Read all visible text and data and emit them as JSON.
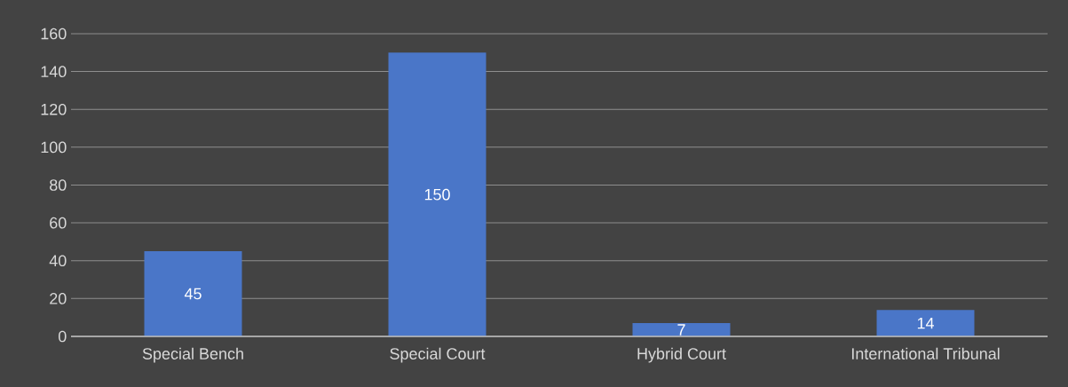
{
  "chart_data": {
    "type": "bar",
    "categories": [
      "Special Bench",
      "Special Court",
      "Hybrid Court",
      "International Tribunal"
    ],
    "values": [
      45,
      150,
      7,
      14
    ],
    "color": "#4a76c8",
    "ylim": [
      0,
      160
    ],
    "yticks": [
      0,
      20,
      40,
      60,
      80,
      100,
      120,
      140,
      160
    ],
    "grid": "y",
    "data_labels": true
  }
}
